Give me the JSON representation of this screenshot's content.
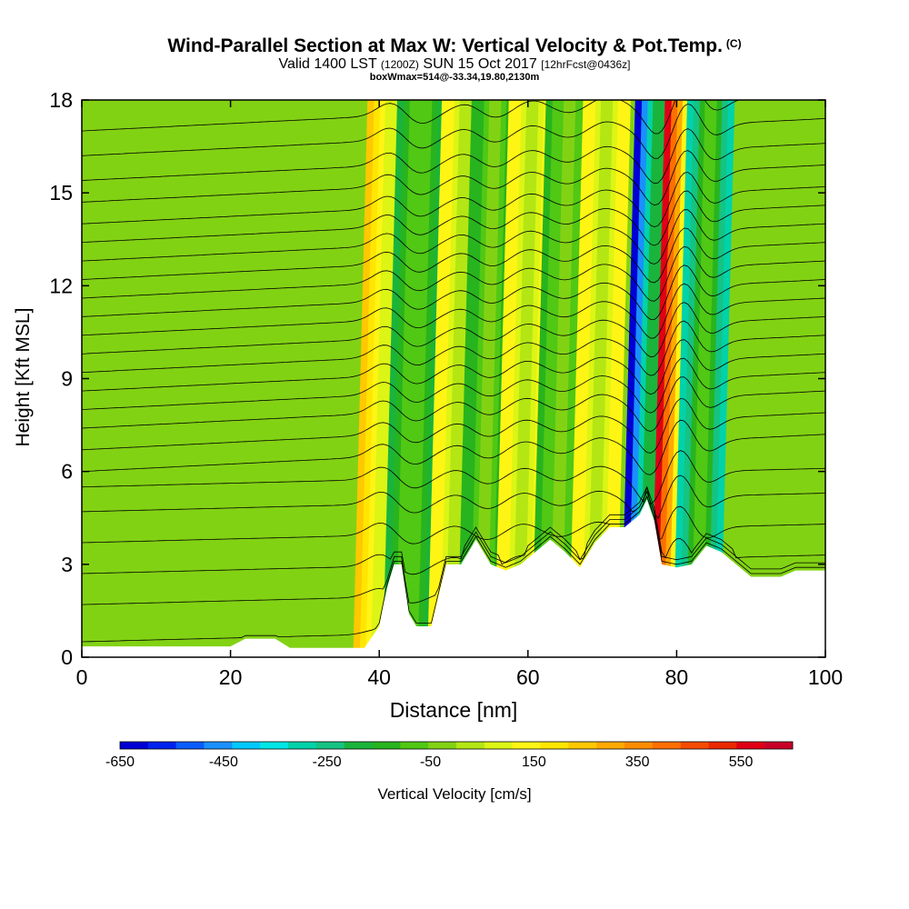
{
  "title": {
    "main": "Wind-Parallel Section at Max W: Vertical Velocity & Pot.Temp.",
    "copyright": "(C)",
    "valid_prefix": "Valid 1400 LST",
    "valid_utc": "(1200Z)",
    "valid_date": "SUN 15 Oct 2017",
    "forecast": "[12hrFcst@0436z]",
    "subtitle": "boxWmax=514@-33.34,19.80,2130m"
  },
  "chart_data": {
    "type": "heatmap",
    "xlabel": "Distance [nm]",
    "ylabel": "Height [Kft MSL]",
    "xlim": [
      0,
      100
    ],
    "ylim": [
      0,
      18
    ],
    "xticks": [
      "0",
      "20",
      "40",
      "60",
      "80",
      "100"
    ],
    "yticks": [
      "0",
      "3",
      "6",
      "9",
      "12",
      "15",
      "18"
    ],
    "colorbar": {
      "label": "Vertical Velocity [cm/s]",
      "ticks": [
        "-650",
        "-450",
        "-250",
        "-50",
        "150",
        "350",
        "550"
      ],
      "range": [
        -650,
        650
      ],
      "colors": [
        "#0000d4",
        "#0022ee",
        "#0a5cff",
        "#1a90ff",
        "#00c8ff",
        "#00e6e6",
        "#00d2aa",
        "#15c382",
        "#1ab43c",
        "#28b41e",
        "#50c814",
        "#82d214",
        "#b4e614",
        "#dcf514",
        "#fff514",
        "#ffe600",
        "#ffc800",
        "#ffaa00",
        "#ff8c00",
        "#ff6e00",
        "#f54b00",
        "#eb2800",
        "#e10014",
        "#c80028"
      ]
    },
    "terrain_kft": [
      [
        0,
        0.35
      ],
      [
        5,
        0.35
      ],
      [
        20,
        0.35
      ],
      [
        22,
        0.6
      ],
      [
        26,
        0.6
      ],
      [
        28,
        0.3
      ],
      [
        34,
        0.3
      ],
      [
        38,
        0.3
      ],
      [
        40,
        1.0
      ],
      [
        41,
        2.2
      ],
      [
        42,
        3.0
      ],
      [
        43,
        3.0
      ],
      [
        44,
        1.4
      ],
      [
        45,
        1.0
      ],
      [
        47,
        1.0
      ],
      [
        48,
        2.0
      ],
      [
        49,
        3.0
      ],
      [
        51,
        3.0
      ],
      [
        53,
        3.8
      ],
      [
        55,
        3.0
      ],
      [
        57,
        2.8
      ],
      [
        59,
        3.0
      ],
      [
        61,
        3.4
      ],
      [
        63,
        3.8
      ],
      [
        65,
        3.4
      ],
      [
        67,
        2.9
      ],
      [
        69,
        3.7
      ],
      [
        71,
        4.2
      ],
      [
        73,
        4.2
      ],
      [
        75,
        4.6
      ],
      [
        76,
        5.1
      ],
      [
        77,
        4.4
      ],
      [
        78,
        3.0
      ],
      [
        80,
        2.9
      ],
      [
        82,
        3.0
      ],
      [
        84,
        3.6
      ],
      [
        86,
        3.4
      ],
      [
        88,
        3.0
      ],
      [
        90,
        2.6
      ],
      [
        94,
        2.6
      ],
      [
        96,
        2.8
      ],
      [
        100,
        2.8
      ]
    ],
    "w_features": [
      {
        "x": 40,
        "w_cms": 250,
        "note": "updraft"
      },
      {
        "x": 44,
        "w_cms": -200,
        "note": "downdraft"
      },
      {
        "x": 50,
        "w_cms": 150,
        "note": "updraft"
      },
      {
        "x": 54,
        "w_cms": -150,
        "note": "downdraft"
      },
      {
        "x": 59,
        "w_cms": 150,
        "note": "updraft"
      },
      {
        "x": 64,
        "w_cms": -120,
        "note": "downdraft"
      },
      {
        "x": 69,
        "w_cms": 150,
        "note": "updraft"
      },
      {
        "x": 76,
        "w_cms": -650,
        "note": "downdraft"
      },
      {
        "x": 80,
        "w_cms": 550,
        "note": "updraft"
      },
      {
        "x": 83,
        "w_cms": -300,
        "note": "downdraft"
      }
    ],
    "theta_contour_heights_kft": [
      0.8,
      2.0,
      3.0,
      4.0,
      5.0,
      5.8,
      6.6,
      7.3,
      8.0,
      8.6,
      9.2,
      9.8,
      10.4,
      11.0,
      11.6,
      12.2,
      12.8,
      13.4,
      14.0,
      14.6,
      15.3,
      16.0,
      16.8,
      17.6
    ]
  }
}
